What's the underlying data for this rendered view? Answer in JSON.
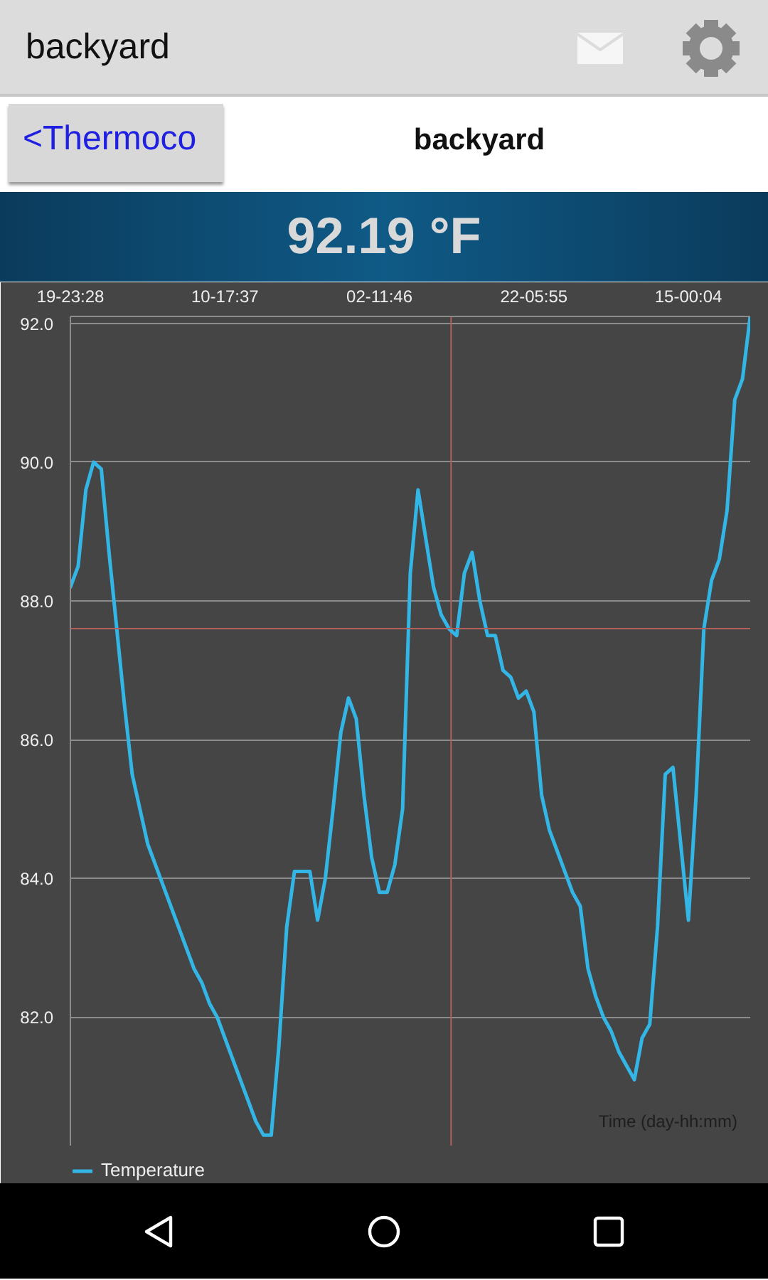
{
  "chart_data": {
    "type": "line",
    "title": "backyard",
    "subtitle": "92.19 °F",
    "xlabel": "Time (day-hh:mm)",
    "annotations": [
      "backyard",
      "<Thermoco"
    ],
    "categories": [
      "19-23:28",
      null,
      null,
      null,
      null,
      null,
      null,
      null,
      null,
      null,
      null,
      null,
      null,
      null,
      null,
      null,
      null,
      null,
      null,
      null,
      "10-17:37",
      null,
      null,
      null,
      null,
      null,
      null,
      null,
      null,
      null,
      null,
      null,
      null,
      null,
      null,
      null,
      null,
      null,
      null,
      null,
      "02-11:46",
      null,
      null,
      null,
      null,
      null,
      null,
      null,
      null,
      null,
      null,
      null,
      null,
      null,
      null,
      null,
      null,
      null,
      null,
      null,
      "22-05:55",
      null,
      null,
      null,
      null,
      null,
      null,
      null,
      null,
      null,
      null,
      null,
      null,
      null,
      null,
      null,
      null,
      null,
      null,
      null,
      "15-00:04",
      null,
      null,
      null,
      null,
      null,
      null,
      null,
      null
    ],
    "series": [
      {
        "name": "Temperature",
        "color": "#33b5e5",
        "values": [
          88.2,
          88.5,
          89.6,
          90.0,
          89.9,
          88.7,
          87.6,
          86.5,
          85.5,
          85.0,
          84.5,
          84.2,
          83.9,
          83.6,
          83.3,
          83.0,
          82.7,
          82.5,
          82.2,
          82.0,
          81.7,
          81.4,
          81.1,
          80.8,
          80.5,
          80.3,
          80.3,
          81.6,
          83.3,
          84.1,
          84.1,
          84.1,
          83.4,
          84.0,
          85.0,
          86.1,
          86.6,
          86.3,
          85.2,
          84.3,
          83.8,
          83.8,
          84.2,
          85.0,
          88.4,
          89.6,
          88.9,
          88.2,
          87.8,
          87.6,
          87.5,
          88.4,
          88.7,
          88.0,
          87.5,
          87.5,
          87.0,
          86.9,
          86.6,
          86.7,
          86.4,
          85.2,
          84.7,
          84.4,
          84.1,
          83.8,
          83.6,
          82.7,
          82.3,
          82.0,
          81.8,
          81.5,
          81.3,
          81.1,
          81.7,
          81.9,
          83.3,
          85.5,
          85.6,
          84.5,
          83.4,
          85.2,
          87.6,
          88.3,
          88.6,
          89.3,
          90.9,
          91.2,
          92.1
        ]
      }
    ],
    "ylim": [
      80.15,
      92.1
    ],
    "yticks": [
      {
        "value": 82,
        "label": "82.0"
      },
      {
        "value": 84,
        "label": "84.0"
      },
      {
        "value": 86,
        "label": "86.0"
      },
      {
        "value": 88,
        "label": "88.0"
      },
      {
        "value": 90,
        "label": "90.0"
      },
      {
        "value": 92,
        "label": "92.0"
      }
    ],
    "ref_lines": [
      {
        "axis": "y",
        "value": 87.6,
        "color": "#b4605a"
      }
    ],
    "grid": "y",
    "legend": "bottom left",
    "line_style": "solid"
  }
}
